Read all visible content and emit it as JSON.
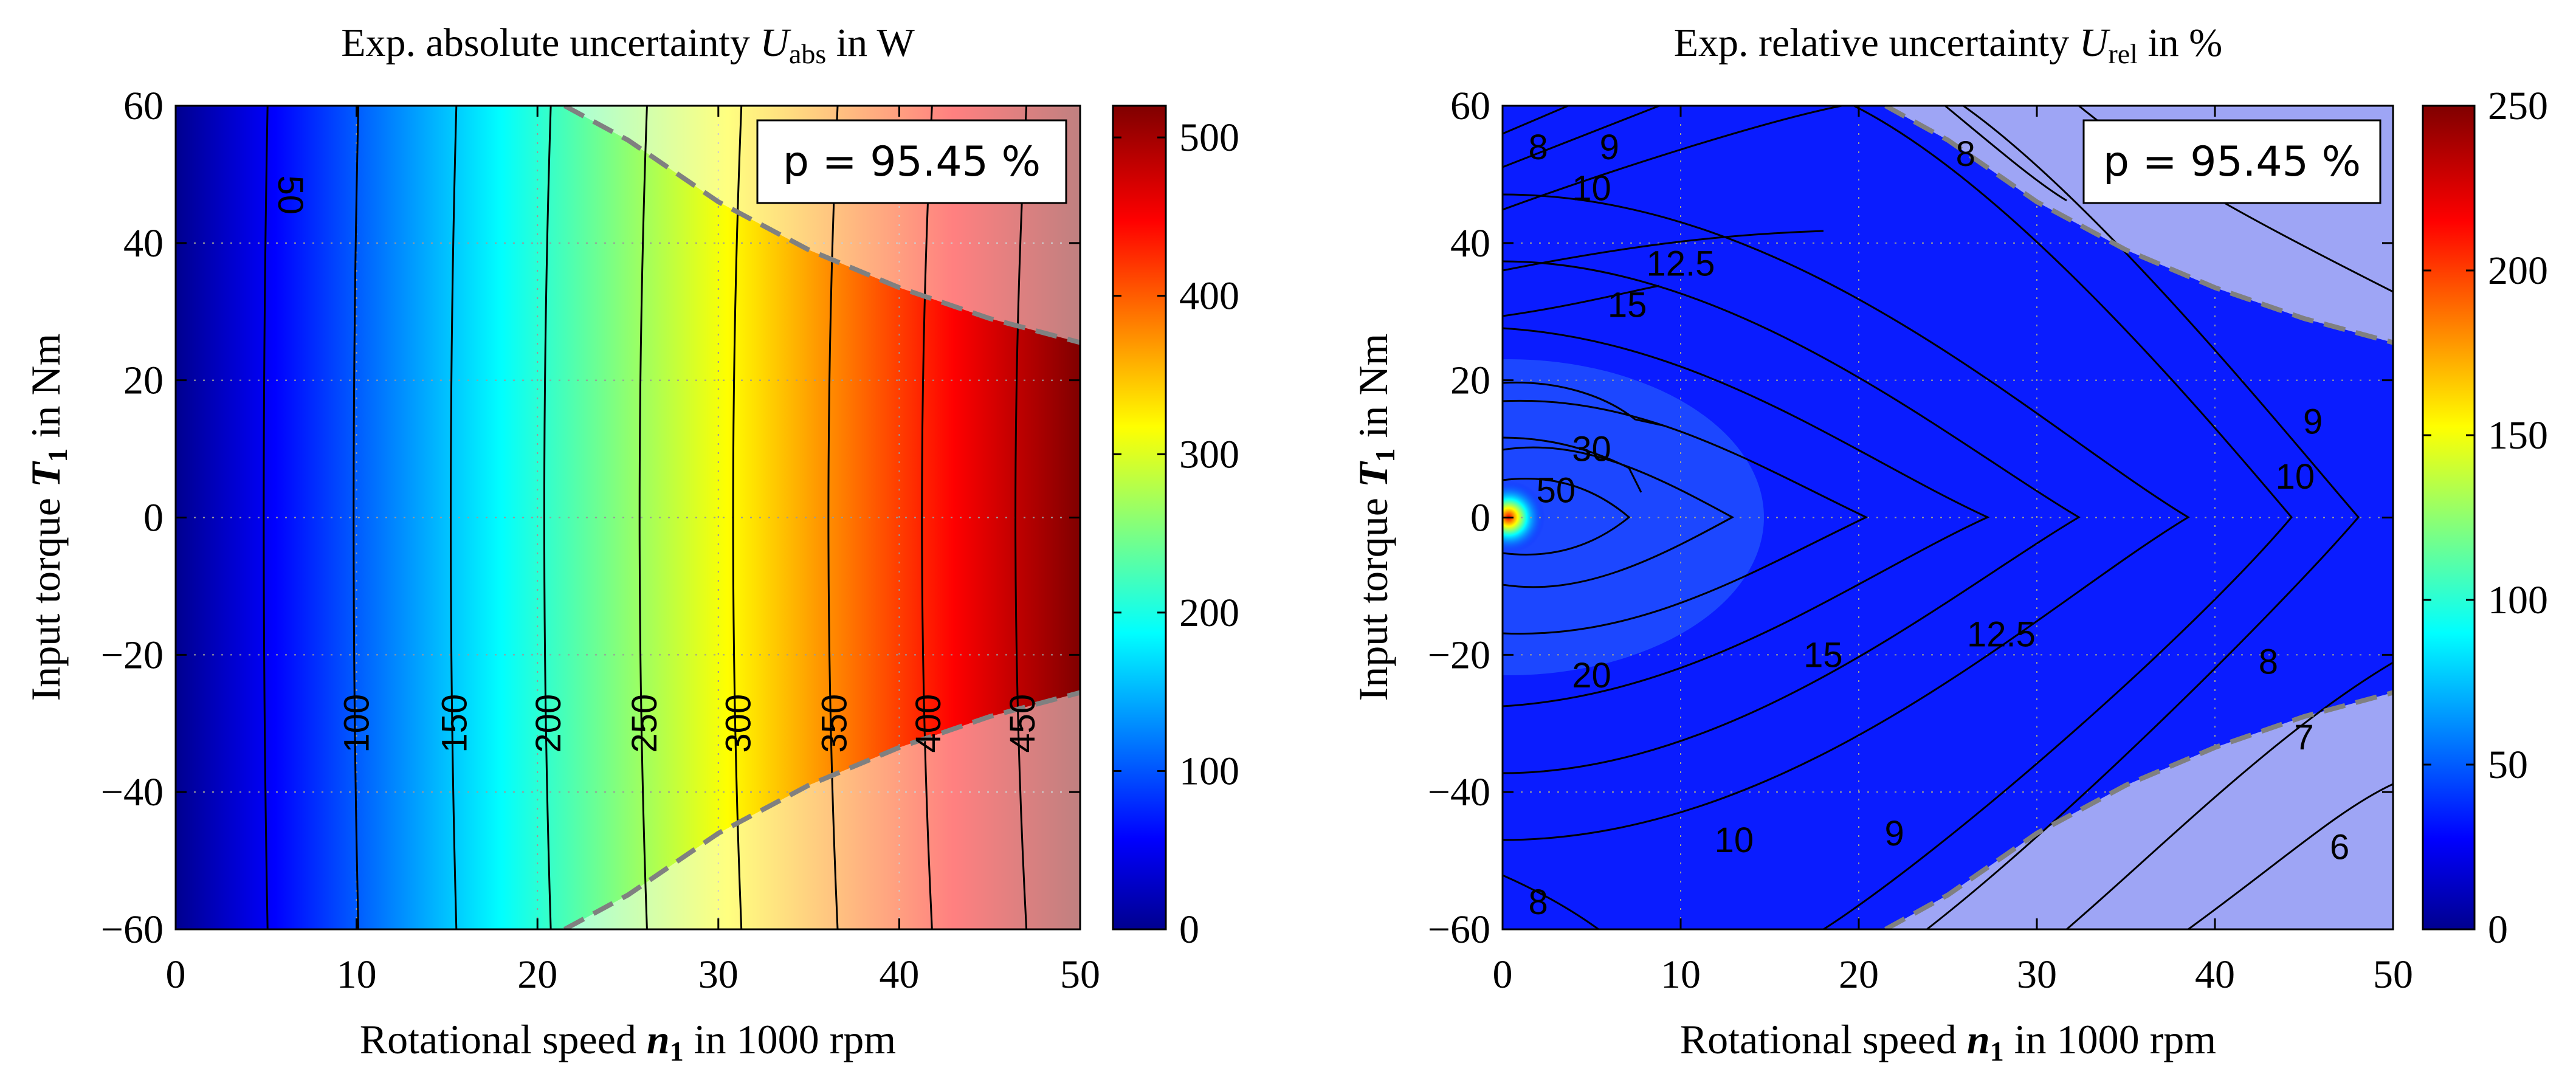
{
  "chart_data": [
    {
      "type": "heatmap",
      "title": "Exp. absolute uncertainty U_abs in W",
      "title_parts": {
        "prefix": "Exp. absolute uncertainty ",
        "symbol": "U",
        "subscript": "abs",
        "suffix": " in W"
      },
      "xlabel_parts": {
        "prefix": "Rotational speed ",
        "symbol": "n",
        "subscript": "1",
        "suffix": " in 1000 rpm"
      },
      "ylabel_parts": {
        "prefix": "Input torque ",
        "symbol": "T",
        "subscript": "1",
        "suffix": " in Nm"
      },
      "xlim": [
        0,
        50
      ],
      "ylim": [
        -60,
        60
      ],
      "xticks": [
        0,
        10,
        20,
        30,
        40,
        50
      ],
      "yticks": [
        -60,
        -40,
        -20,
        0,
        20,
        40,
        60
      ],
      "colorbar": {
        "range": [
          0,
          520
        ],
        "ticks": [
          0,
          100,
          200,
          300,
          400,
          500
        ],
        "colormap": "jet"
      },
      "annotation": "p = 95.45 %",
      "grid": true,
      "contours": [
        {
          "level": 50,
          "label": "50",
          "x": 5
        },
        {
          "level": 100,
          "label": "100",
          "x": 10
        },
        {
          "level": 150,
          "label": "150",
          "x": 15.4
        },
        {
          "level": 200,
          "label": "200",
          "x": 20.6
        },
        {
          "level": 250,
          "label": "250",
          "x": 25.9
        },
        {
          "level": 300,
          "label": "300",
          "x": 31.1
        },
        {
          "level": 350,
          "label": "350",
          "x": 36.4
        },
        {
          "level": 400,
          "label": "400",
          "x": 41.6
        },
        {
          "level": 450,
          "label": "450",
          "x": 46.8
        }
      ],
      "invalid_region": {
        "description": "operating range limit",
        "boundary": [
          [
            21.5,
            60
          ],
          [
            25,
            55
          ],
          [
            30,
            46
          ],
          [
            35,
            39
          ],
          [
            40,
            33.5
          ],
          [
            45,
            29
          ],
          [
            50,
            25.5
          ]
        ]
      }
    },
    {
      "type": "heatmap",
      "title": "Exp. relative uncertainty U_rel in %",
      "title_parts": {
        "prefix": "Exp. relative uncertainty ",
        "symbol": "U",
        "subscript": "rel",
        "suffix": " in %"
      },
      "xlabel_parts": {
        "prefix": "Rotational speed ",
        "symbol": "n",
        "subscript": "1",
        "suffix": " in 1000 rpm"
      },
      "ylabel_parts": {
        "prefix": "Input torque ",
        "symbol": "T",
        "subscript": "1",
        "suffix": " in Nm"
      },
      "xlim": [
        0,
        50
      ],
      "ylim": [
        -60,
        60
      ],
      "xticks": [
        0,
        10,
        20,
        30,
        40,
        50
      ],
      "yticks": [
        -60,
        -40,
        -20,
        0,
        20,
        40,
        60
      ],
      "colorbar": {
        "range": [
          0,
          250
        ],
        "ticks": [
          0,
          50,
          100,
          150,
          200,
          250
        ],
        "colormap": "jet"
      },
      "annotation": "p = 95.45 %",
      "grid": true,
      "contour_labels": [
        {
          "text": "8",
          "x": 2,
          "y": 54
        },
        {
          "text": "9",
          "x": 6,
          "y": 54
        },
        {
          "text": "10",
          "x": 5,
          "y": 48
        },
        {
          "text": "12.5",
          "x": 10,
          "y": 37
        },
        {
          "text": "15",
          "x": 7,
          "y": 31
        },
        {
          "text": "30",
          "x": 5,
          "y": 10
        },
        {
          "text": "50",
          "x": 3,
          "y": 4
        },
        {
          "text": "20",
          "x": 5,
          "y": -23
        },
        {
          "text": "15",
          "x": 18,
          "y": -20
        },
        {
          "text": "12.5",
          "x": 28,
          "y": -17
        },
        {
          "text": "10",
          "x": 13,
          "y": -47
        },
        {
          "text": "9",
          "x": 22,
          "y": -46
        },
        {
          "text": "8",
          "x": 2,
          "y": -56
        },
        {
          "text": "8",
          "x": 43,
          "y": -21
        },
        {
          "text": "7",
          "x": 45,
          "y": -32
        },
        {
          "text": "6",
          "x": 47,
          "y": -48
        },
        {
          "text": "9",
          "x": 45.5,
          "y": 14
        },
        {
          "text": "10",
          "x": 44.5,
          "y": 6
        },
        {
          "text": "8",
          "x": 26,
          "y": 53
        }
      ],
      "invalid_region": {
        "description": "operating range limit",
        "boundary": [
          [
            21.5,
            60
          ],
          [
            25,
            55
          ],
          [
            30,
            46
          ],
          [
            35,
            39
          ],
          [
            40,
            33.5
          ],
          [
            45,
            29
          ],
          [
            50,
            25.5
          ]
        ]
      }
    }
  ]
}
